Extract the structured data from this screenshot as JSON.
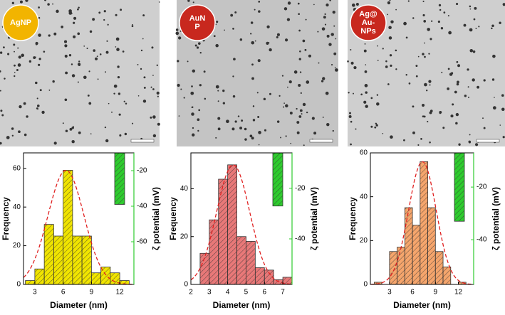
{
  "images": [
    {
      "label": [
        "AgNP"
      ],
      "color": "#f2b400"
    },
    {
      "label": [
        "AuN",
        "P"
      ],
      "color": "#c8281e"
    },
    {
      "label": [
        "Ag@",
        "Au-",
        "NPs"
      ],
      "color": "#c8281e"
    }
  ],
  "chart_data": [
    {
      "type": "histogram",
      "bins": [
        2,
        3,
        4,
        5,
        6,
        7,
        8,
        9,
        10,
        11,
        12,
        13
      ],
      "values": [
        2,
        8,
        31,
        25,
        59,
        25,
        25,
        6,
        9,
        6,
        2
      ],
      "color": "#f0e400",
      "xlim": [
        1.8,
        13.5
      ],
      "xticks": [
        3,
        6,
        9,
        12
      ],
      "ylim": [
        0,
        68
      ],
      "yticks": [
        0,
        20,
        40,
        60
      ],
      "y2lim": [
        -84,
        -10
      ],
      "y2ticks": [
        -20,
        -40,
        -60
      ],
      "zeta": {
        "value": -39,
        "color": "#2ecc2e",
        "axis": "y2"
      },
      "fit": {
        "mean": 6.3,
        "sd": 1.9,
        "peak": 59,
        "color": "#e02020"
      },
      "xlabel": "Diameter (nm)",
      "ylabel": "Frequency",
      "y2label": "ζ potential (mV)"
    },
    {
      "type": "histogram",
      "bins": [
        2.5,
        3,
        3.5,
        4,
        4.5,
        5,
        5.5,
        6,
        6.5,
        7,
        7.5
      ],
      "values": [
        13,
        27,
        44,
        50,
        20,
        18,
        7,
        6,
        2,
        3
      ],
      "color": "#e87878",
      "xlim": [
        2,
        7.5
      ],
      "xticks": [
        2,
        3,
        4,
        5,
        6,
        7
      ],
      "ylim": [
        0,
        55
      ],
      "yticks": [
        0,
        20,
        40
      ],
      "y2lim": [
        -58,
        -6
      ],
      "y2ticks": [
        -20,
        -40
      ],
      "zeta": {
        "value": -27,
        "color": "#2ecc2e",
        "axis": "y2"
      },
      "fit": {
        "mean": 4.3,
        "sd": 0.9,
        "peak": 50,
        "color": "#e02020"
      },
      "xlabel": "Diameter (nm)",
      "ylabel": "Frequency",
      "y2label": "ζ potential (mV)"
    },
    {
      "type": "histogram",
      "bins": [
        1,
        2,
        3,
        4,
        5,
        6,
        7,
        8,
        9,
        10,
        11,
        12,
        13
      ],
      "values": [
        1,
        0,
        15,
        17,
        35,
        27,
        56,
        35,
        15,
        8,
        0,
        1
      ],
      "color": "#f5a56c",
      "xlim": [
        0.5,
        14
      ],
      "xticks": [
        3,
        6,
        9,
        12
      ],
      "ylim": [
        0,
        60
      ],
      "yticks": [
        0,
        20,
        40,
        60
      ],
      "y2lim": [
        -57,
        -7
      ],
      "y2ticks": [
        -20,
        -40
      ],
      "zeta": {
        "value": -33,
        "color": "#2ecc2e",
        "axis": "y2"
      },
      "fit": {
        "mean": 7.3,
        "sd": 1.8,
        "peak": 56,
        "color": "#e02020"
      },
      "xlabel": "Diameter (nm)",
      "ylabel": "Frequency",
      "y2label": "ζ potential (mV)"
    }
  ]
}
